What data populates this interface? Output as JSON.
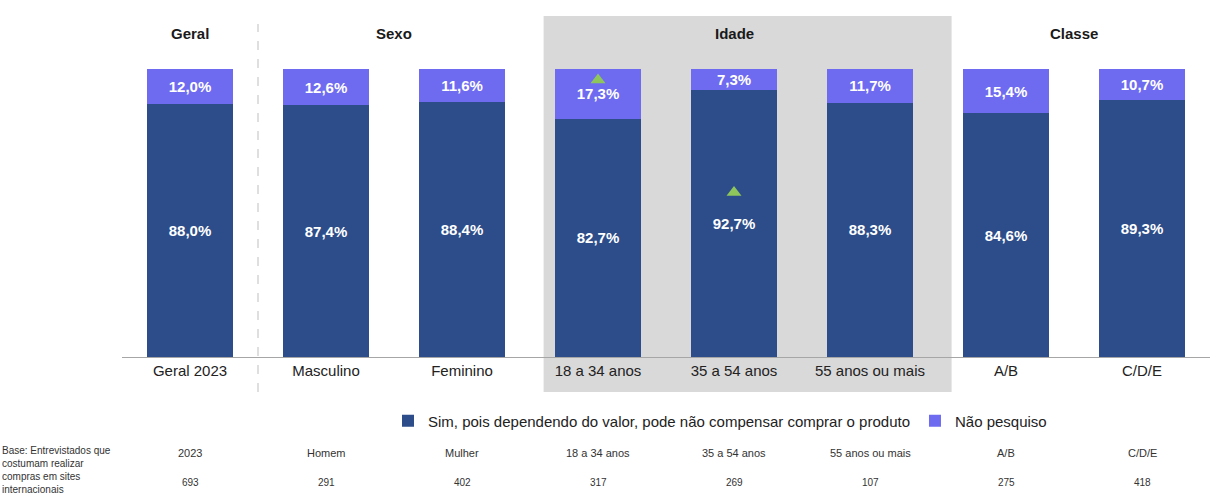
{
  "chart_data": {
    "type": "bar",
    "stacked": true,
    "data_labels": true,
    "tick_labels": "x",
    "legend": "bottom",
    "categories": [
      "Geral 2023",
      "Masculino",
      "Feminino",
      "18 a 34 anos",
      "35 a 54 anos",
      "55 anos ou mais",
      "A/B",
      "C/D/E"
    ],
    "groups": [
      {
        "label": "Geral",
        "categories": [
          "Geral 2023"
        ]
      },
      {
        "label": "Sexo",
        "categories": [
          "Masculino",
          "Feminino"
        ]
      },
      {
        "label": "Idade",
        "categories": [
          "18 a 34 anos",
          "35 a 54 anos",
          "55 anos ou mais"
        ]
      },
      {
        "label": "Classe",
        "categories": [
          "A/B",
          "C/D/E"
        ]
      }
    ],
    "ylim": [
      0,
      100
    ],
    "yticks": [],
    "series": [
      {
        "name": "Sim, pois dependendo do valor, pode não compensar comprar o produto",
        "color": "#2c4d8a",
        "values": [
          88.0,
          87.4,
          88.4,
          82.7,
          92.7,
          88.3,
          84.6,
          89.3
        ],
        "value_labels": [
          "88,0%",
          "87,4%",
          "88,4%",
          "82,7%",
          "92,7%",
          "88,3%",
          "84,6%",
          "89,3%"
        ],
        "significant": [
          false,
          false,
          false,
          false,
          true,
          false,
          false,
          false
        ]
      },
      {
        "name": "Não pesquiso",
        "color": "#6e6bf0",
        "values": [
          12.0,
          12.6,
          11.6,
          17.3,
          7.3,
          11.7,
          15.4,
          10.7
        ],
        "value_labels": [
          "12,0%",
          "12,6%",
          "11,6%",
          "17,3%",
          "7,3%",
          "11,7%",
          "15,4%",
          "10,7%"
        ],
        "significant": [
          false,
          false,
          false,
          true,
          false,
          false,
          false,
          false
        ]
      }
    ],
    "base": {
      "label": [
        "Base: Entrevistados que",
        "costumam realizar",
        "compras em sites",
        "internacionais"
      ],
      "columns": [
        "2023",
        "Homem",
        "Mulher",
        "18 a 34 anos",
        "35 a 54 anos",
        "55 anos ou mais",
        "A/B",
        "C/D/E"
      ],
      "counts": [
        693,
        291,
        402,
        317,
        269,
        107,
        275,
        418
      ]
    }
  }
}
